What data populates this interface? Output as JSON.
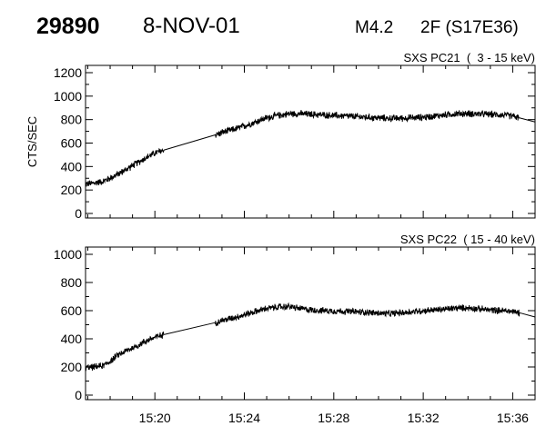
{
  "header": {
    "event_id": "29890",
    "date": "8-NOV-01",
    "goes_class": "M4.2",
    "optical": "2F (S17E36)"
  },
  "chart_data": [
    {
      "type": "line",
      "title": "SXS PC21  (  3 - 15 keV)",
      "ylabel": "CTS/SEC",
      "xlabel": "",
      "ylim": [
        0,
        1200
      ],
      "yticks": [
        0,
        200,
        400,
        600,
        800,
        1000,
        1200
      ],
      "xlim_minutes_after_15h": [
        16.9,
        37.0
      ],
      "xticks": [],
      "noise_amplitude": 35,
      "segments": [
        {
          "x": [
            16.9,
            17.3,
            17.7,
            18.0,
            18.4,
            18.8,
            19.2,
            19.6,
            20.0,
            20.4
          ],
          "y": [
            250,
            260,
            275,
            300,
            340,
            385,
            430,
            475,
            515,
            540
          ]
        },
        {
          "x": [
            20.4,
            22.7
          ],
          "y": [
            540,
            670
          ],
          "interpolated": true
        },
        {
          "x": [
            22.7,
            23.0,
            23.5,
            24.0,
            24.5,
            25.0,
            25.5,
            26.0,
            26.5,
            27.0,
            27.5,
            28.0,
            28.5,
            29.0,
            29.5,
            30.0,
            30.5,
            31.0,
            31.5,
            32.0,
            32.5,
            33.0,
            33.5,
            34.0,
            34.5,
            35.0,
            35.5,
            36.0,
            36.3
          ],
          "y": [
            670,
            690,
            715,
            745,
            780,
            815,
            835,
            850,
            850,
            845,
            840,
            835,
            830,
            825,
            820,
            815,
            810,
            812,
            815,
            820,
            830,
            840,
            850,
            850,
            848,
            845,
            840,
            830,
            815
          ]
        },
        {
          "x": [
            36.3,
            37.0
          ],
          "y": [
            815,
            780
          ],
          "interpolated": true
        }
      ]
    },
    {
      "type": "line",
      "title": "SXS PC22  ( 15 - 40 keV)",
      "ylabel": "",
      "xlabel": "",
      "ylim": [
        0,
        1000
      ],
      "yticks": [
        0,
        200,
        400,
        600,
        800,
        1000
      ],
      "xlim_minutes_after_15h": [
        16.9,
        37.0
      ],
      "xticks": [
        "15:20",
        "15:24",
        "15:28",
        "15:32",
        "15:36"
      ],
      "noise_amplitude": 28,
      "segments": [
        {
          "x": [
            16.9,
            17.3,
            17.7,
            18.0,
            18.4,
            18.8,
            19.2,
            19.6,
            20.0,
            20.4
          ],
          "y": [
            195,
            200,
            210,
            240,
            290,
            320,
            350,
            385,
            410,
            430
          ]
        },
        {
          "x": [
            20.4,
            22.7
          ],
          "y": [
            430,
            515
          ],
          "interpolated": true
        },
        {
          "x": [
            22.7,
            23.0,
            23.5,
            24.0,
            24.5,
            25.0,
            25.5,
            26.0,
            26.5,
            27.0,
            27.5,
            28.0,
            28.5,
            29.0,
            29.5,
            30.0,
            30.5,
            31.0,
            31.5,
            32.0,
            32.5,
            33.0,
            33.5,
            34.0,
            34.5,
            35.0,
            35.5,
            36.0,
            36.3
          ],
          "y": [
            515,
            530,
            550,
            570,
            595,
            615,
            625,
            630,
            615,
            605,
            600,
            598,
            595,
            592,
            588,
            582,
            578,
            585,
            592,
            600,
            605,
            610,
            618,
            620,
            612,
            605,
            600,
            595,
            585
          ]
        },
        {
          "x": [
            36.3,
            37.0
          ],
          "y": [
            585,
            555
          ],
          "interpolated": true
        }
      ]
    }
  ]
}
